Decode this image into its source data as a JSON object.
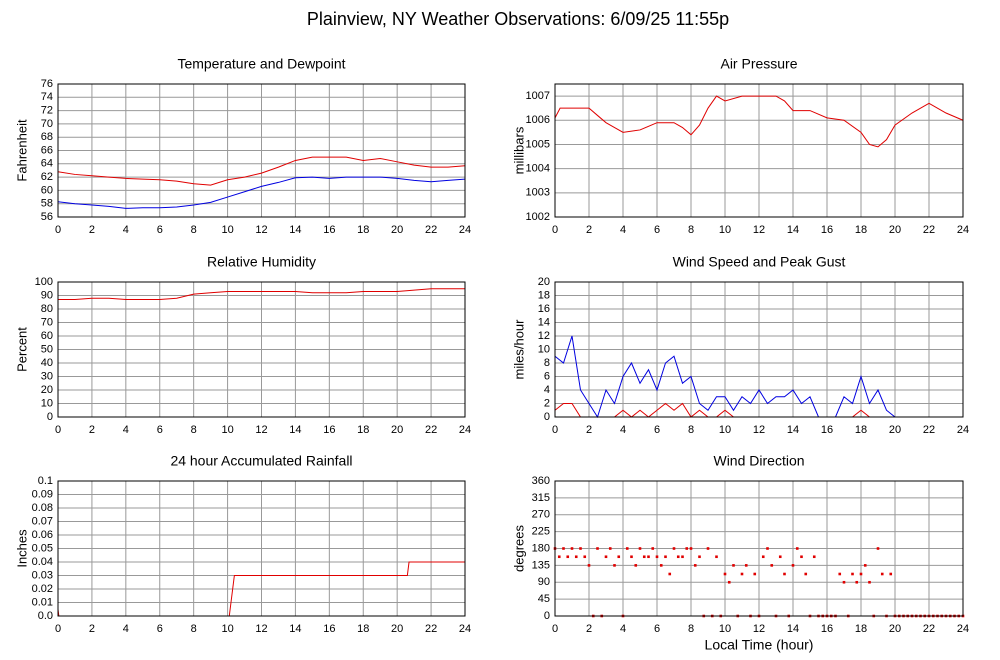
{
  "title": "Plainview, NY Weather Observations: 6/09/25 11:55p",
  "chart_data": [
    {
      "type": "line",
      "title": "Temperature and Dewpoint",
      "ylabel": "Fahrenheit",
      "xlim": [
        0,
        24
      ],
      "xticks": [
        0,
        2,
        4,
        6,
        8,
        10,
        12,
        14,
        16,
        18,
        20,
        22,
        24
      ],
      "ylim": [
        56,
        76
      ],
      "yticks": [
        56,
        58,
        60,
        62,
        64,
        66,
        68,
        70,
        72,
        74,
        76
      ],
      "grid": true,
      "x": [
        0,
        1,
        2,
        3,
        4,
        5,
        6,
        7,
        8,
        9,
        10,
        11,
        12,
        13,
        14,
        15,
        16,
        17,
        18,
        19,
        20,
        21,
        22,
        23,
        24
      ],
      "series": [
        {
          "color": "#e00000",
          "values": [
            62.8,
            62.4,
            62.2,
            62,
            61.8,
            61.7,
            61.6,
            61.4,
            61,
            60.8,
            61.6,
            62,
            62.6,
            63.5,
            64.5,
            65,
            65,
            65,
            64.5,
            64.8,
            64.3,
            63.8,
            63.5,
            63.5,
            63.7
          ]
        },
        {
          "color": "#0000e0",
          "values": [
            58.3,
            58,
            57.8,
            57.6,
            57.3,
            57.4,
            57.4,
            57.5,
            57.8,
            58.2,
            59,
            59.8,
            60.6,
            61.2,
            61.9,
            62,
            61.8,
            62,
            62,
            62,
            61.8,
            61.5,
            61.3,
            61.5,
            61.7
          ]
        }
      ]
    },
    {
      "type": "line",
      "title": "Air Pressure",
      "ylabel": "millibars",
      "xlim": [
        0,
        24
      ],
      "xticks": [
        0,
        2,
        4,
        6,
        8,
        10,
        12,
        14,
        16,
        18,
        20,
        22,
        24
      ],
      "ylim": [
        1002,
        1007.5
      ],
      "yticks": [
        1002,
        1003,
        1004,
        1005,
        1006,
        1007
      ],
      "grid": true,
      "x": [
        0,
        0.3,
        2,
        2.5,
        3,
        4,
        5,
        6,
        7,
        7.5,
        8,
        8.5,
        9,
        9.5,
        10,
        11,
        12,
        13,
        13.5,
        14,
        15,
        16,
        17,
        18,
        18.5,
        19,
        19.5,
        20,
        21,
        22,
        23,
        24
      ],
      "series": [
        {
          "color": "#e00000",
          "values": [
            1006.1,
            1006.5,
            1006.5,
            1006.2,
            1005.9,
            1005.5,
            1005.6,
            1005.9,
            1005.9,
            1005.7,
            1005.4,
            1005.8,
            1006.5,
            1007,
            1006.8,
            1007,
            1007,
            1007,
            1006.8,
            1006.4,
            1006.4,
            1006.1,
            1006,
            1005.5,
            1005,
            1004.9,
            1005.2,
            1005.8,
            1006.3,
            1006.7,
            1006.3,
            1006
          ]
        }
      ]
    },
    {
      "type": "line",
      "title": "Relative Humidity",
      "ylabel": "Percent",
      "xlim": [
        0,
        24
      ],
      "xticks": [
        0,
        2,
        4,
        6,
        8,
        10,
        12,
        14,
        16,
        18,
        20,
        22,
        24
      ],
      "ylim": [
        0,
        100
      ],
      "yticks": [
        0,
        10,
        20,
        30,
        40,
        50,
        60,
        70,
        80,
        90,
        100
      ],
      "grid": true,
      "x": [
        0,
        1,
        2,
        3,
        4,
        5,
        6,
        7,
        8,
        9,
        10,
        11,
        12,
        13,
        14,
        15,
        16,
        17,
        18,
        19,
        20,
        21,
        22,
        23,
        24
      ],
      "series": [
        {
          "color": "#e00000",
          "values": [
            87,
            87,
            88,
            88,
            87,
            87,
            87,
            88,
            91,
            92,
            93,
            93,
            93,
            93,
            93,
            92,
            92,
            92,
            93,
            93,
            93,
            94,
            95,
            95,
            95
          ]
        }
      ]
    },
    {
      "type": "line",
      "title": "Wind Speed and Peak Gust",
      "ylabel": "miles/hour",
      "xlim": [
        0,
        24
      ],
      "xticks": [
        0,
        2,
        4,
        6,
        8,
        10,
        12,
        14,
        16,
        18,
        20,
        22,
        24
      ],
      "ylim": [
        0,
        20
      ],
      "yticks": [
        0,
        2,
        4,
        6,
        8,
        10,
        12,
        14,
        16,
        18,
        20
      ],
      "grid": true,
      "x": [
        0,
        0.5,
        1,
        1.5,
        2,
        2.5,
        3,
        3.5,
        4,
        4.5,
        5,
        5.5,
        6,
        6.5,
        7,
        7.5,
        8,
        8.5,
        9,
        9.5,
        10,
        10.5,
        11,
        11.5,
        12,
        12.5,
        13,
        13.5,
        14,
        14.5,
        15,
        15.5,
        16,
        16.5,
        17,
        17.5,
        18,
        18.5,
        19,
        19.5,
        20,
        20.5,
        21,
        21.5,
        22,
        22.5,
        23,
        23.5,
        24
      ],
      "series": [
        {
          "color": "#0000e0",
          "values": [
            9,
            8,
            12,
            4,
            2,
            0,
            4,
            2,
            6,
            8,
            5,
            7,
            4,
            8,
            9,
            5,
            6,
            2,
            1,
            3,
            3,
            1,
            3,
            2,
            4,
            2,
            3,
            3,
            4,
            2,
            3,
            0,
            0,
            0,
            3,
            2,
            6,
            2,
            4,
            1,
            0,
            0,
            0,
            0,
            0,
            0,
            0,
            0,
            0
          ]
        },
        {
          "color": "#e00000",
          "values": [
            1,
            2,
            2,
            0,
            0,
            0,
            0,
            0,
            1,
            0,
            1,
            0,
            1,
            2,
            1,
            2,
            0,
            1,
            0,
            0,
            1,
            0,
            0,
            0,
            0,
            0,
            0,
            0,
            0,
            0,
            0,
            0,
            0,
            0,
            0,
            0,
            1,
            0,
            0,
            0,
            0,
            0,
            0,
            0,
            0,
            0,
            0,
            0,
            0
          ]
        }
      ]
    },
    {
      "type": "line",
      "title": "24 hour Accumulated Rainfall",
      "ylabel": "Inches",
      "xlim": [
        0,
        24
      ],
      "xticks": [
        0,
        2,
        4,
        6,
        8,
        10,
        12,
        14,
        16,
        18,
        20,
        22,
        24
      ],
      "ylim": [
        0,
        0.1
      ],
      "yticks": [
        {
          "value": 0,
          "label": "0.0"
        },
        0.01,
        0.02,
        0.03,
        0.04,
        0.05,
        0.06,
        0.07,
        0.08,
        0.09,
        0.1
      ],
      "grid": true,
      "x": [
        0,
        0.05,
        10.1,
        10.4,
        20.6,
        20.7,
        24
      ],
      "series": [
        {
          "color": "#e00000",
          "values": [
            0.005,
            0,
            0,
            0.03,
            0.03,
            0.04,
            0.04
          ]
        }
      ]
    },
    {
      "type": "scatter",
      "title": "Wind Direction",
      "ylabel": "degrees",
      "xlabel": "Local Time (hour)",
      "xlim": [
        0,
        24
      ],
      "xticks": [
        0,
        2,
        4,
        6,
        8,
        10,
        12,
        14,
        16,
        18,
        20,
        22,
        24
      ],
      "ylim": [
        0,
        360
      ],
      "yticks": [
        0,
        45,
        90,
        135,
        180,
        225,
        270,
        315,
        360
      ],
      "grid": true,
      "x": [
        0,
        0.25,
        0.5,
        0.75,
        1,
        1.25,
        1.5,
        1.75,
        2,
        2.25,
        2.5,
        2.75,
        3,
        3.25,
        3.5,
        3.75,
        4,
        4.25,
        4.5,
        4.75,
        5,
        5.25,
        5.5,
        5.75,
        6,
        6.25,
        6.5,
        6.75,
        7,
        7.25,
        7.5,
        7.75,
        8,
        8.25,
        8.5,
        8.75,
        9,
        9.25,
        9.5,
        9.75,
        10,
        10.25,
        10.5,
        10.75,
        11,
        11.25,
        11.5,
        11.75,
        12,
        12.25,
        12.5,
        12.75,
        13,
        13.25,
        13.5,
        13.75,
        14,
        14.25,
        14.5,
        14.75,
        15,
        15.25,
        15.5,
        15.75,
        16,
        16.25,
        16.5,
        16.75,
        17,
        17.25,
        17.5,
        17.75,
        18,
        18.25,
        18.5,
        18.75,
        19,
        19.25,
        19.5,
        19.75,
        20,
        20.25,
        20.5,
        20.75,
        21,
        21.25,
        21.5,
        21.75,
        22,
        22.25,
        22.5,
        22.75,
        23,
        23.25,
        23.5,
        23.75,
        24
      ],
      "series": [
        {
          "color": "#e00000",
          "values": [
            180,
            158,
            180,
            158,
            180,
            158,
            180,
            158,
            135,
            0,
            180,
            0,
            158,
            180,
            135,
            158,
            0,
            180,
            158,
            135,
            180,
            158,
            158,
            180,
            158,
            135,
            158,
            112,
            180,
            158,
            158,
            180,
            180,
            135,
            158,
            0,
            180,
            0,
            158,
            0,
            112,
            90,
            135,
            0,
            112,
            135,
            0,
            112,
            0,
            158,
            180,
            135,
            0,
            158,
            112,
            0,
            135,
            180,
            158,
            112,
            0,
            158,
            0,
            0,
            0,
            0,
            0,
            112,
            90,
            0,
            112,
            90,
            112,
            135,
            90,
            0,
            180,
            112,
            0,
            112,
            0,
            0,
            0,
            0,
            0,
            0,
            0,
            0,
            0,
            0,
            0,
            0,
            0,
            0,
            0,
            0,
            0
          ]
        }
      ]
    }
  ]
}
